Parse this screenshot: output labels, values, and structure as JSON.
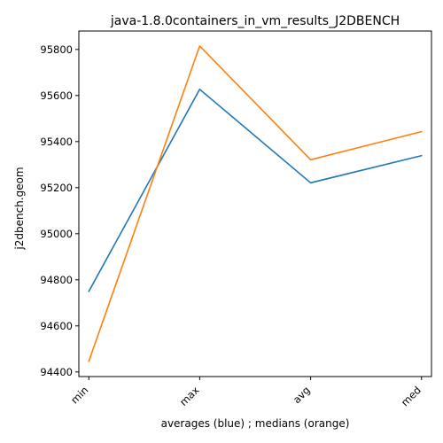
{
  "chart_data": {
    "type": "line",
    "title": "java-1.8.0containers_in_vm_results_J2DBENCH",
    "xlabel": "averages (blue) ; medians (orange)",
    "ylabel": "j2dbench.geom",
    "categories": [
      "min",
      "max",
      "avg",
      "med"
    ],
    "ylim": [
      94380,
      95880
    ],
    "yticks": [
      94400,
      94600,
      94800,
      95000,
      95200,
      95400,
      95600,
      95800
    ],
    "grid": false,
    "series": [
      {
        "color": "#1f77b4",
        "values": [
          94750,
          95627,
          95221,
          95339
        ]
      },
      {
        "color": "#ff7f0e",
        "values": [
          94447,
          95815,
          95321,
          95443
        ]
      }
    ]
  }
}
